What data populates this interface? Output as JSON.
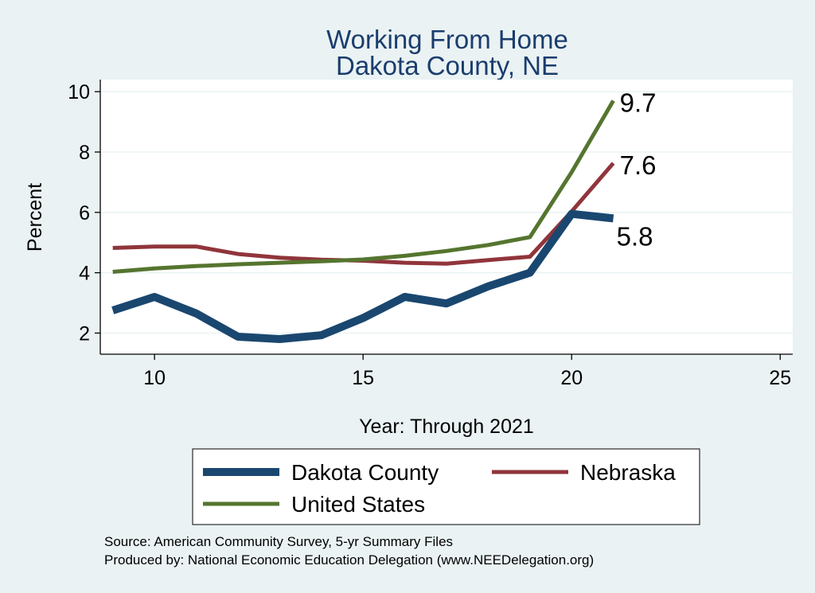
{
  "chart_data": {
    "type": "line",
    "title": "Working From Home",
    "subtitle": "Dakota County, NE",
    "xlabel": "Year: Through 2021",
    "ylabel": "Percent",
    "xlim": [
      8.7,
      25.3
    ],
    "ylim": [
      1.3,
      10.4
    ],
    "xticks": [
      10,
      15,
      20,
      25
    ],
    "yticks": [
      2,
      4,
      6,
      8,
      10
    ],
    "grid": true,
    "legend_position": "bottom",
    "x": [
      9,
      10,
      11,
      12,
      13,
      14,
      15,
      16,
      17,
      18,
      19,
      20,
      21
    ],
    "series": [
      {
        "name": "Dakota County",
        "color": "#1a476f",
        "width": 10,
        "values": [
          2.75,
          3.2,
          2.65,
          1.88,
          1.8,
          1.93,
          2.5,
          3.2,
          2.98,
          3.55,
          4.0,
          5.95,
          5.8
        ],
        "end_label": "5.8"
      },
      {
        "name": "Nebraska",
        "color": "#90353b",
        "width": 5,
        "values": [
          4.82,
          4.87,
          4.87,
          4.62,
          4.5,
          4.43,
          4.4,
          4.33,
          4.3,
          4.42,
          4.53,
          6.03,
          7.63
        ],
        "end_label": "7.6"
      },
      {
        "name": "United States",
        "color": "#55752f",
        "width": 5,
        "values": [
          4.03,
          4.14,
          4.22,
          4.28,
          4.33,
          4.38,
          4.44,
          4.56,
          4.72,
          4.92,
          5.18,
          7.33,
          9.7
        ],
        "end_label": "9.7"
      }
    ],
    "notes": [
      "Source: American Community Survey, 5-yr Summary Files",
      "Produced by: National Economic Education Delegation (www.NEEDelegation.org)"
    ]
  }
}
